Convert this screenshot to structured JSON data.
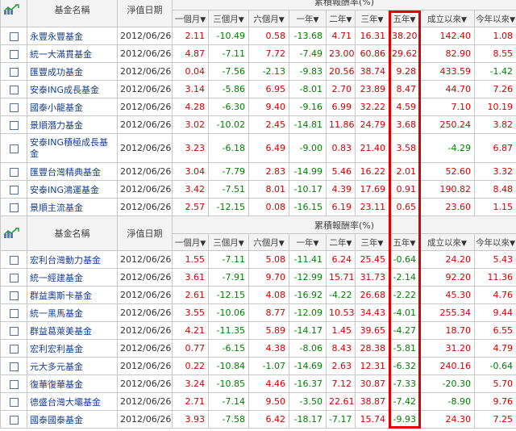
{
  "header": {
    "fund_name": "基金名稱",
    "nav_date": "淨值日期",
    "group_title": "累積報酬率(%)",
    "columns": [
      "一個月",
      "三個月",
      "六個月",
      "一年",
      "二年",
      "三年",
      "五年",
      "成立以來",
      "今年以來"
    ],
    "sort_arrow": "▼"
  },
  "icons": {
    "chart": "chart-icon",
    "checkbox": "checkbox-icon"
  },
  "colors": {
    "positive": "#d40000",
    "negative": "#008000",
    "highlight_border": "#e00000",
    "link": "#1a3f8f"
  },
  "table1": [
    {
      "name": "永豐永豐基金",
      "date": "2012/06/26",
      "vals": [
        "2.11",
        "-10.49",
        "0.58",
        "-13.68",
        "4.71",
        "16.31",
        "38.20",
        "142.40",
        "1.08"
      ]
    },
    {
      "name": "統一大滿貫基金",
      "date": "2012/06/26",
      "vals": [
        "4.87",
        "-7.11",
        "7.72",
        "-7.49",
        "23.00",
        "60.86",
        "29.62",
        "82.90",
        "8.55"
      ]
    },
    {
      "name": "匯豐成功基金",
      "date": "2012/06/26",
      "vals": [
        "0.04",
        "-7.56",
        "-2.13",
        "-9.83",
        "20.56",
        "38.74",
        "9.28",
        "433.59",
        "-1.42"
      ]
    },
    {
      "name": "安泰ING成長基金",
      "date": "2012/06/26",
      "vals": [
        "3.14",
        "-5.86",
        "6.95",
        "-8.01",
        "2.70",
        "23.89",
        "8.47",
        "44.70",
        "7.26"
      ]
    },
    {
      "name": "國泰小龍基金",
      "date": "2012/06/26",
      "vals": [
        "4.28",
        "-6.30",
        "9.40",
        "-9.16",
        "6.99",
        "32.22",
        "4.59",
        "7.10",
        "10.19"
      ]
    },
    {
      "name": "景順潛力基金",
      "date": "2012/06/26",
      "vals": [
        "3.02",
        "-10.02",
        "2.45",
        "-14.81",
        "11.86",
        "24.79",
        "3.68",
        "250.24",
        "3.82"
      ]
    },
    {
      "name": "安泰ING積極成長基金",
      "date": "2012/06/26",
      "vals": [
        "3.23",
        "-6.18",
        "6.49",
        "-9.00",
        "0.83",
        "21.40",
        "3.58",
        "-4.29",
        "6.87"
      ],
      "tall": true
    },
    {
      "name": "匯豐台灣精典基金",
      "date": "2012/06/26",
      "vals": [
        "3.04",
        "-7.79",
        "2.83",
        "-14.99",
        "5.46",
        "16.22",
        "2.01",
        "52.60",
        "3.32"
      ]
    },
    {
      "name": "安泰ING鴻運基金",
      "date": "2012/06/26",
      "vals": [
        "3.42",
        "-7.51",
        "8.01",
        "-10.17",
        "4.39",
        "17.69",
        "0.91",
        "190.82",
        "8.48"
      ]
    },
    {
      "name": "景順主流基金",
      "date": "2012/06/26",
      "vals": [
        "2.57",
        "-12.15",
        "0.08",
        "-16.15",
        "6.19",
        "23.11",
        "0.65",
        "23.60",
        "1.15"
      ]
    }
  ],
  "table2": [
    {
      "name": "宏利台灣動力基金",
      "date": "2012/06/26",
      "vals": [
        "1.55",
        "-7.11",
        "5.08",
        "-11.41",
        "6.24",
        "25.45",
        "-0.64",
        "24.20",
        "5.43"
      ]
    },
    {
      "name": "統一經建基金",
      "date": "2012/06/26",
      "vals": [
        "3.61",
        "-7.91",
        "9.70",
        "-12.99",
        "15.71",
        "31.73",
        "-2.14",
        "92.20",
        "11.36"
      ]
    },
    {
      "name": "群益奧斯卡基金",
      "date": "2012/06/26",
      "vals": [
        "2.61",
        "-12.15",
        "4.08",
        "-16.92",
        "-4.22",
        "26.68",
        "-2.22",
        "45.30",
        "4.76"
      ]
    },
    {
      "name": "統一黑馬基金",
      "date": "2012/06/26",
      "vals": [
        "3.55",
        "-10.06",
        "8.77",
        "-12.09",
        "10.53",
        "34.43",
        "-4.01",
        "255.34",
        "9.44"
      ]
    },
    {
      "name": "群益葛萊美基金",
      "date": "2012/06/26",
      "vals": [
        "4.21",
        "-11.35",
        "5.89",
        "-14.17",
        "1.45",
        "39.65",
        "-4.27",
        "18.70",
        "6.55"
      ]
    },
    {
      "name": "宏利宏利基金",
      "date": "2012/06/26",
      "vals": [
        "0.77",
        "-6.15",
        "4.38",
        "-8.06",
        "8.43",
        "28.38",
        "-5.81",
        "31.20",
        "4.79"
      ]
    },
    {
      "name": "元大多元基金",
      "date": "2012/06/26",
      "vals": [
        "0.22",
        "-10.84",
        "-1.07",
        "-14.69",
        "2.63",
        "12.31",
        "-6.32",
        "240.16",
        "-0.64"
      ]
    },
    {
      "name": "復華復華基金",
      "date": "2012/06/26",
      "vals": [
        "3.24",
        "-10.85",
        "4.46",
        "-16.37",
        "7.12",
        "30.87",
        "-7.33",
        "-20.30",
        "5.70"
      ]
    },
    {
      "name": "德盛台灣大壩基金",
      "date": "2012/06/26",
      "vals": [
        "2.71",
        "-7.14",
        "9.50",
        "-3.50",
        "22.61",
        "38.87",
        "-7.42",
        "-8.90",
        "9.76"
      ]
    },
    {
      "name": "國泰國泰基金",
      "date": "2012/06/26",
      "vals": [
        "3.93",
        "-7.58",
        "6.42",
        "-18.17",
        "-7.17",
        "15.74",
        "-9.93",
        "24.30",
        "7.25"
      ]
    }
  ]
}
